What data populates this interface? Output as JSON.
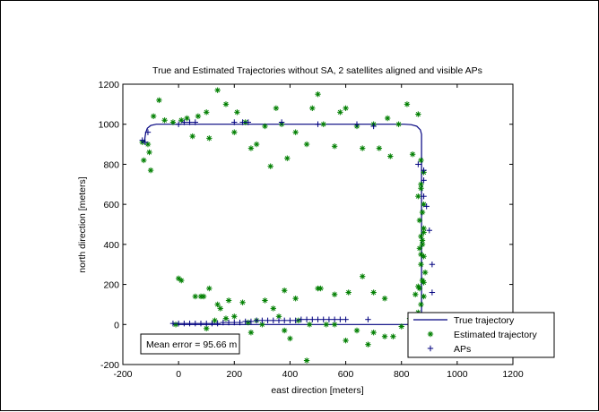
{
  "chart_data": {
    "type": "scatter",
    "title": "True and Estimated Trajectories without SA, 2 satellites aligned and visible APs",
    "xlabel": "east direction [meters]",
    "ylabel": "north direction [meters]",
    "xlim": [
      -200,
      1200
    ],
    "ylim": [
      -200,
      1200
    ],
    "xticks": [
      "-200",
      "0",
      "200",
      "400",
      "600",
      "800",
      "1000",
      "1200"
    ],
    "yticks": [
      "-200",
      "0",
      "200",
      "400",
      "600",
      "800",
      "1000",
      "1200"
    ],
    "grid": false,
    "legend_position": "bottom-right",
    "annotation": "Mean error = 95.66 m",
    "series": [
      {
        "name": "True trajectory",
        "style": "line",
        "color": "#00007f",
        "points": [
          [
            -20,
            0
          ],
          [
            820,
            0
          ],
          [
            845,
            6
          ],
          [
            862,
            20
          ],
          [
            870,
            40
          ],
          [
            872,
            60
          ],
          [
            872,
            950
          ],
          [
            868,
            972
          ],
          [
            855,
            990
          ],
          [
            835,
            998
          ],
          [
            810,
            1000
          ],
          [
            -80,
            1000
          ],
          [
            -100,
            994
          ],
          [
            -112,
            980
          ],
          [
            -118,
            958
          ],
          [
            -120,
            940
          ],
          [
            -122,
            915
          ],
          [
            -130,
            910
          ]
        ]
      },
      {
        "name": "Estimated trajectory",
        "style": "marker-star",
        "color": "#007f00",
        "points": [
          [
            -130,
            910
          ],
          [
            -110,
            900
          ],
          [
            -105,
            860
          ],
          [
            -125,
            820
          ],
          [
            -100,
            770
          ],
          [
            -90,
            1040
          ],
          [
            -70,
            1120
          ],
          [
            -50,
            1020
          ],
          [
            -20,
            1010
          ],
          [
            10,
            1020
          ],
          [
            30,
            1030
          ],
          [
            50,
            940
          ],
          [
            70,
            1040
          ],
          [
            100,
            1060
          ],
          [
            110,
            930
          ],
          [
            140,
            1170
          ],
          [
            170,
            1100
          ],
          [
            200,
            960
          ],
          [
            210,
            1060
          ],
          [
            240,
            1010
          ],
          [
            260,
            880
          ],
          [
            280,
            900
          ],
          [
            310,
            990
          ],
          [
            330,
            790
          ],
          [
            350,
            1080
          ],
          [
            370,
            1000
          ],
          [
            390,
            830
          ],
          [
            420,
            960
          ],
          [
            460,
            900
          ],
          [
            480,
            1080
          ],
          [
            500,
            1150
          ],
          [
            520,
            1000
          ],
          [
            560,
            890
          ],
          [
            580,
            1060
          ],
          [
            600,
            1080
          ],
          [
            640,
            990
          ],
          [
            660,
            880
          ],
          [
            700,
            1000
          ],
          [
            720,
            880
          ],
          [
            750,
            1030
          ],
          [
            760,
            840
          ],
          [
            790,
            1000
          ],
          [
            820,
            1100
          ],
          [
            840,
            850
          ],
          [
            860,
            1050
          ],
          [
            870,
            820
          ],
          [
            880,
            760
          ],
          [
            870,
            680
          ],
          [
            880,
            600
          ],
          [
            875,
            560
          ],
          [
            865,
            520
          ],
          [
            880,
            480
          ],
          [
            870,
            440
          ],
          [
            875,
            400
          ],
          [
            865,
            380
          ],
          [
            880,
            340
          ],
          [
            870,
            300
          ],
          [
            885,
            260
          ],
          [
            875,
            220
          ],
          [
            865,
            180
          ],
          [
            880,
            140
          ],
          [
            870,
            100
          ],
          [
            860,
            60
          ],
          [
            850,
            40
          ],
          [
            830,
            30
          ],
          [
            800,
            -10
          ],
          [
            770,
            -60
          ],
          [
            740,
            -60
          ],
          [
            700,
            -40
          ],
          [
            680,
            -100
          ],
          [
            640,
            -30
          ],
          [
            600,
            -80
          ],
          [
            560,
            0
          ],
          [
            530,
            0
          ],
          [
            500,
            180
          ],
          [
            470,
            0
          ],
          [
            460,
            -180
          ],
          [
            430,
            20
          ],
          [
            400,
            -70
          ],
          [
            380,
            -30
          ],
          [
            360,
            40
          ],
          [
            340,
            80
          ],
          [
            300,
            0
          ],
          [
            280,
            20
          ],
          [
            260,
            -40
          ],
          [
            230,
            110
          ],
          [
            200,
            40
          ],
          [
            170,
            30
          ],
          [
            150,
            80
          ],
          [
            130,
            20
          ],
          [
            100,
            -20
          ],
          [
            90,
            140
          ],
          [
            80,
            140
          ],
          [
            60,
            140
          ],
          [
            40,
            -60
          ],
          [
            20,
            -60
          ],
          [
            10,
            220
          ],
          [
            0,
            230
          ],
          [
            -10,
            0
          ],
          [
            110,
            180
          ],
          [
            140,
            100
          ],
          [
            180,
            120
          ],
          [
            250,
            10
          ],
          [
            310,
            120
          ],
          [
            380,
            170
          ],
          [
            420,
            130
          ],
          [
            510,
            180
          ],
          [
            560,
            150
          ],
          [
            610,
            160
          ],
          [
            660,
            240
          ],
          [
            700,
            160
          ],
          [
            740,
            130
          ],
          [
            850,
            150
          ],
          [
            860,
            190
          ],
          [
            880,
            210
          ],
          [
            870,
            350
          ],
          [
            875,
            420
          ],
          [
            880,
            460
          ],
          [
            860,
            640
          ],
          [
            870,
            700
          ]
        ]
      },
      {
        "name": "APs",
        "style": "marker-plus",
        "color": "#00007f",
        "points": [
          [
            -130,
            920
          ],
          [
            -120,
            910
          ],
          [
            -110,
            960
          ],
          [
            0,
            1000
          ],
          [
            20,
            1010
          ],
          [
            40,
            1010
          ],
          [
            60,
            1010
          ],
          [
            200,
            1010
          ],
          [
            230,
            1010
          ],
          [
            250,
            1010
          ],
          [
            370,
            1010
          ],
          [
            500,
            1000
          ],
          [
            640,
            1000
          ],
          [
            700,
            990
          ],
          [
            860,
            800
          ],
          [
            880,
            770
          ],
          [
            880,
            720
          ],
          [
            880,
            640
          ],
          [
            890,
            590
          ],
          [
            900,
            470
          ],
          [
            910,
            300
          ],
          [
            910,
            160
          ],
          [
            -20,
            5
          ],
          [
            0,
            5
          ],
          [
            20,
            5
          ],
          [
            40,
            5
          ],
          [
            60,
            5
          ],
          [
            80,
            5
          ],
          [
            100,
            5
          ],
          [
            120,
            5
          ],
          [
            140,
            5
          ],
          [
            160,
            10
          ],
          [
            180,
            10
          ],
          [
            200,
            10
          ],
          [
            220,
            10
          ],
          [
            240,
            15
          ],
          [
            260,
            15
          ],
          [
            280,
            20
          ],
          [
            300,
            20
          ],
          [
            320,
            20
          ],
          [
            340,
            20
          ],
          [
            360,
            20
          ],
          [
            380,
            20
          ],
          [
            400,
            20
          ],
          [
            420,
            20
          ],
          [
            440,
            25
          ],
          [
            460,
            25
          ],
          [
            480,
            25
          ],
          [
            500,
            25
          ],
          [
            520,
            25
          ],
          [
            540,
            25
          ],
          [
            560,
            25
          ],
          [
            580,
            25
          ],
          [
            600,
            25
          ],
          [
            680,
            25
          ]
        ]
      }
    ]
  }
}
